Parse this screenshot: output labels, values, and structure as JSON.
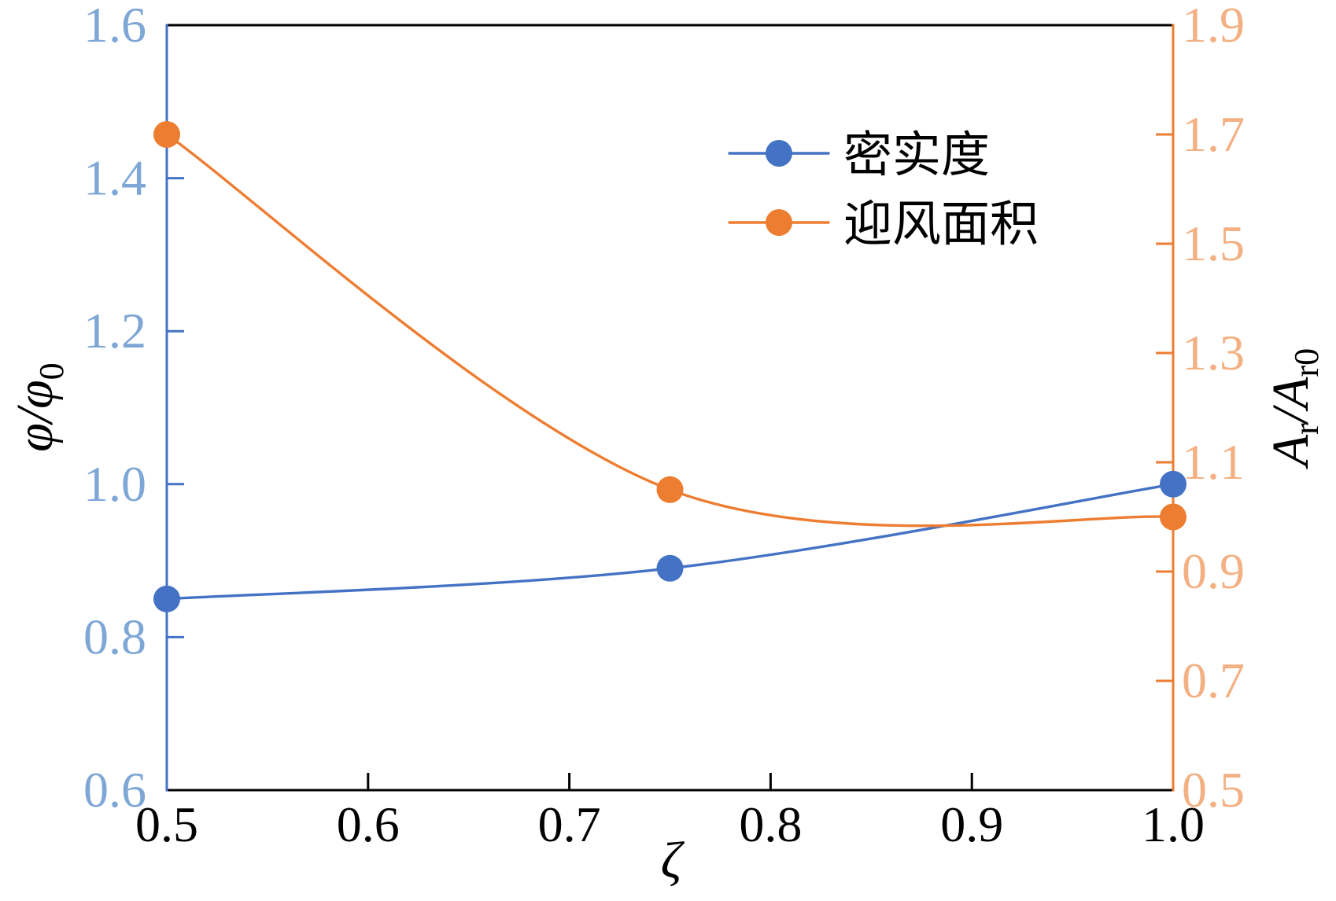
{
  "chart_data": {
    "type": "line",
    "smooth": true,
    "grid": false,
    "legend": "top-right",
    "x": [
      0.5,
      0.75,
      1.0
    ],
    "xlim": [
      0.5,
      1.0
    ],
    "xticks": [
      "0.5",
      "0.6",
      "0.7",
      "0.8",
      "0.9",
      "1.0"
    ],
    "xlabel": "ζ",
    "ylim": [
      0.6,
      1.6
    ],
    "yticks": [
      "0.6",
      "0.8",
      "1.0",
      "1.2",
      "1.4",
      "1.6"
    ],
    "ylabel": {
      "num": "φ",
      "slash": "/",
      "den": "φ",
      "den_sub": "0"
    },
    "y2lim": [
      0.5,
      1.9
    ],
    "y2ticks": [
      "0.5",
      "0.7",
      "0.9",
      "1.1",
      "1.3",
      "1.5",
      "1.7",
      "1.9"
    ],
    "y2label": {
      "num": "A",
      "num_sub": "r",
      "slash": "/",
      "den": "A",
      "den_sub": "r0"
    },
    "series": [
      {
        "name": "密实度",
        "axis": "left",
        "color": "#4472c4",
        "values": [
          0.85,
          0.89,
          1.0
        ]
      },
      {
        "name": "迎风面积",
        "axis": "right",
        "color": "#ed7d31",
        "values": [
          1.7,
          1.05,
          1.0
        ]
      }
    ],
    "colors": {
      "left_axis": "#4472c4",
      "left_tick_labels": "#7ea7d6",
      "right_axis": "#ed7d31",
      "right_tick_labels": "#f3b183",
      "frame": "#000000"
    }
  }
}
